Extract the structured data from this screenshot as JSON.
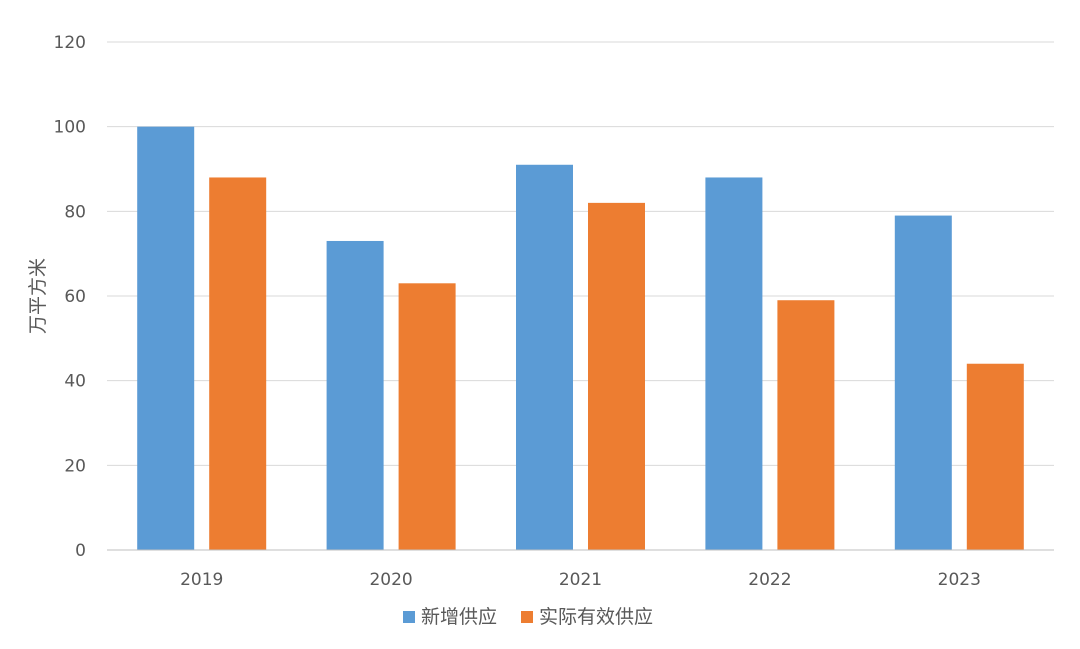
{
  "chart_data": {
    "type": "bar",
    "categories": [
      "2019",
      "2020",
      "2021",
      "2022",
      "2023"
    ],
    "series": [
      {
        "name": "新增供应",
        "values": [
          100,
          73,
          91,
          88,
          79
        ],
        "color": "#5B9BD5"
      },
      {
        "name": "实际有效供应",
        "values": [
          88,
          63,
          82,
          59,
          44
        ],
        "color": "#ED7D31"
      }
    ],
    "title": "",
    "xlabel": "",
    "ylabel": "万平方米",
    "ylim": [
      0,
      120
    ],
    "yticks": [
      0,
      20,
      40,
      60,
      80,
      100,
      120
    ],
    "grid": true,
    "legend_position": "bottom"
  }
}
